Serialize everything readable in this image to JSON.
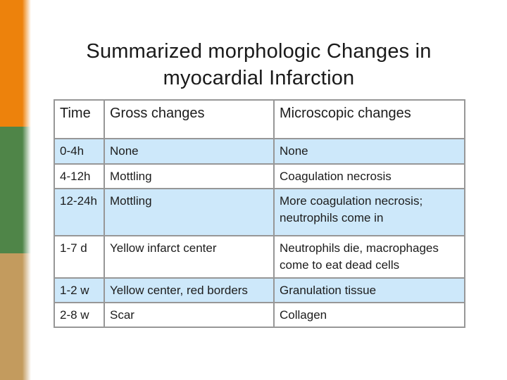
{
  "slide": {
    "title_line1": "Summarized morphologic Changes in",
    "title_line2": "myocardial Infarction"
  },
  "table": {
    "headers": [
      "Time",
      "Gross changes",
      "Microscopic changes"
    ],
    "rows": [
      {
        "time": "0-4h",
        "gross": "None",
        "micro": "None"
      },
      {
        "time": "4-12h",
        "gross": "Mottling",
        "micro": "Coagulation necrosis"
      },
      {
        "time": "12-24h",
        "gross": "Mottling",
        "micro": "More coagulation necrosis; neutrophils come in"
      },
      {
        "time": "1-7 d",
        "gross": "Yellow infarct center",
        "micro": "Neutrophils die, macrophages come to eat dead cells"
      },
      {
        "time": "1-2 w",
        "gross": "Yellow center, red borders",
        "micro": "Granulation tissue"
      },
      {
        "time": "2-8 w",
        "gross": "Scar",
        "micro": "Collagen"
      }
    ]
  },
  "colors": {
    "accent_orange": "#ED820C",
    "accent_green": "#4F8548",
    "accent_tan": "#C39B5E",
    "row_stripe_blue": "#CDE8FA",
    "table_border_gray": "#979797",
    "text": "#1C1C1C",
    "background": "#FFFFFF"
  }
}
